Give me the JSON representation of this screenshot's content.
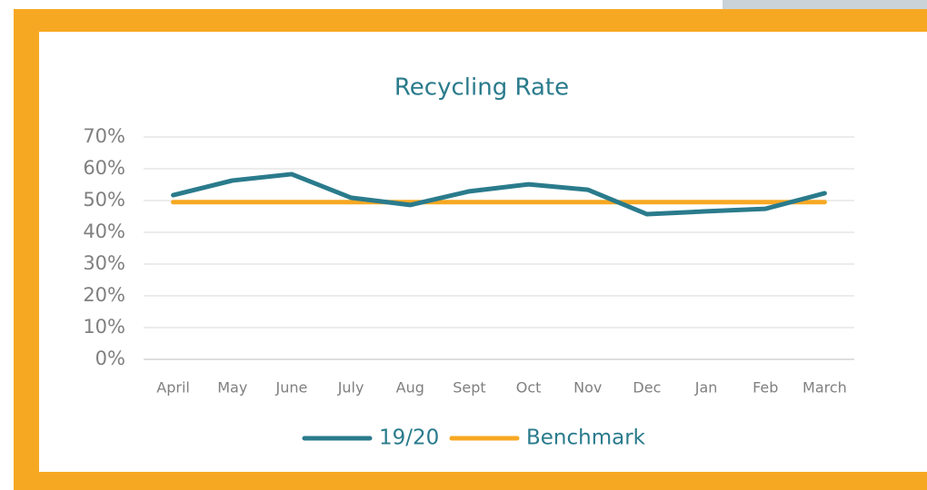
{
  "chart_data": {
    "type": "line",
    "title": "Recycling Rate",
    "categories": [
      "April",
      "May",
      "June",
      "July",
      "Aug",
      "Sept",
      "Oct",
      "Nov",
      "Dec",
      "Jan",
      "Feb",
      "March"
    ],
    "series": [
      {
        "name": "19/20",
        "color": "#2a7b8c",
        "values": [
          51.7,
          56.3,
          58.3,
          50.9,
          48.6,
          52.9,
          55.1,
          53.4,
          45.7,
          46.6,
          47.4,
          52.3
        ]
      },
      {
        "name": "Benchmark",
        "color": "#f7a823",
        "values": [
          49.5,
          49.5,
          49.5,
          49.5,
          49.5,
          49.5,
          49.5,
          49.5,
          49.5,
          49.5,
          49.5,
          49.5
        ]
      }
    ],
    "ylim": [
      0,
      70
    ],
    "yticks": [
      {
        "value": 0,
        "label": "0%"
      },
      {
        "value": 10,
        "label": "10%"
      },
      {
        "value": 20,
        "label": "20%"
      },
      {
        "value": 30,
        "label": "30%"
      },
      {
        "value": 40,
        "label": "40%"
      },
      {
        "value": 50,
        "label": "50%"
      },
      {
        "value": 60,
        "label": "60%"
      },
      {
        "value": 70,
        "label": "70%"
      }
    ],
    "grid": true,
    "legend": "bottom"
  }
}
